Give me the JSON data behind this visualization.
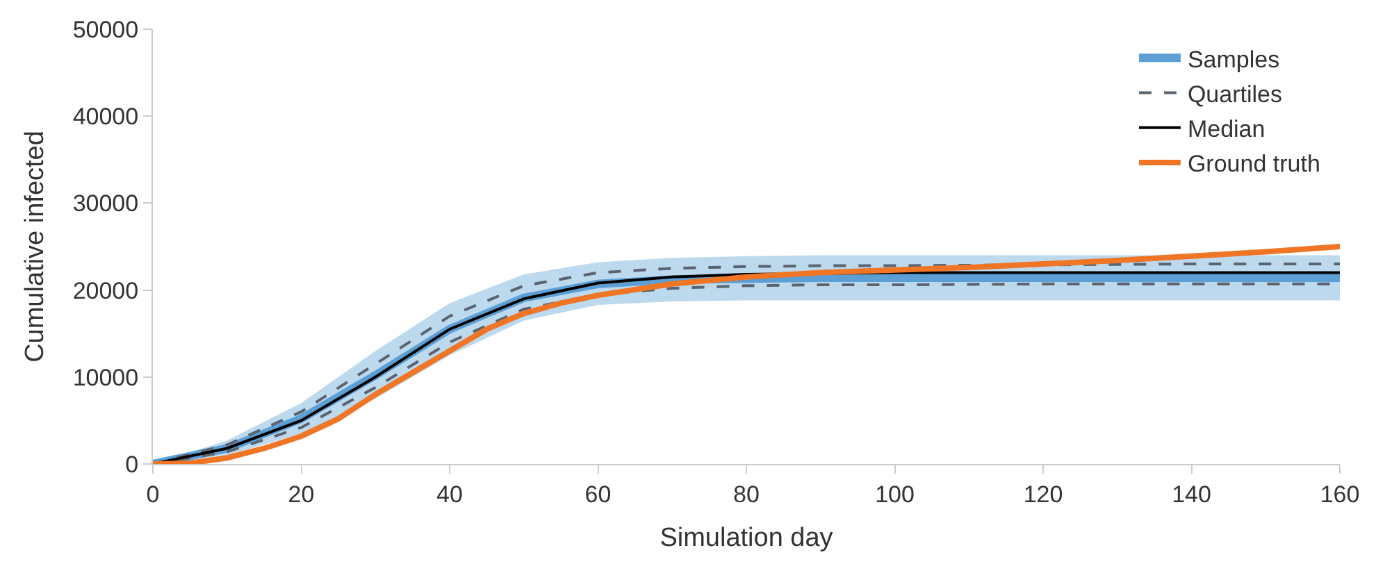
{
  "chart_data": {
    "type": "line",
    "xlabel": "Simulation day",
    "ylabel": "Cumulative infected",
    "x": [
      0,
      10,
      20,
      30,
      40,
      50,
      60,
      70,
      80,
      90,
      100,
      120,
      140,
      160
    ],
    "xlim": [
      0,
      160
    ],
    "xticks": [
      0,
      20,
      40,
      60,
      80,
      100,
      120,
      140,
      160
    ],
    "ylim": [
      0,
      50000
    ],
    "yticks": [
      0,
      10000,
      20000,
      30000,
      40000,
      50000
    ],
    "legend": "top right",
    "marker": "none",
    "series": [
      {
        "name": "Samples",
        "type": "line",
        "color": "#5b9fd4",
        "values": [
          0,
          1800,
          5200,
          10200,
          15500,
          19100,
          20700,
          21200,
          21300,
          21400,
          21400,
          21400,
          21400,
          21400
        ],
        "lower": [
          0,
          1000,
          3500,
          7500,
          12500,
          16500,
          18300,
          18700,
          18800,
          18800,
          18800,
          18800,
          18800,
          18800
        ],
        "upper": [
          0,
          2700,
          7000,
          13000,
          18500,
          21800,
          23200,
          23700,
          23900,
          24000,
          24000,
          24000,
          24000,
          24000
        ]
      },
      {
        "name": "Quartiles",
        "color": "#5a6470",
        "line_style": "dashed",
        "values": [
          0,
          2200,
          6000,
          11500,
          17000,
          20500,
          22000,
          22500,
          22700,
          22800,
          22800,
          22900,
          23000,
          23000
        ]
      },
      {
        "color": "#5a6470",
        "line_style": "dashed",
        "values": [
          0,
          1400,
          4200,
          8800,
          14000,
          17800,
          19500,
          20200,
          20500,
          20600,
          20600,
          20700,
          20700,
          20700
        ]
      },
      {
        "name": "Median",
        "color": "#000000",
        "line_style": "solid",
        "values": [
          0,
          1800,
          5000,
          10000,
          15500,
          19000,
          20800,
          21500,
          21800,
          21900,
          22000,
          22000,
          22000,
          22000
        ]
      },
      {
        "name": "Ground truth",
        "color": "#f07524",
        "line_style": "solid",
        "x": [
          0,
          5,
          10,
          15,
          20,
          25,
          30,
          35,
          40,
          45,
          50,
          55,
          60,
          70,
          80,
          90,
          100,
          110,
          120,
          130,
          140,
          150,
          160
        ],
        "values": [
          0,
          100,
          700,
          1800,
          3200,
          5200,
          8000,
          10500,
          13000,
          15500,
          17300,
          18500,
          19400,
          20700,
          21500,
          22000,
          22300,
          22600,
          23000,
          23400,
          23900,
          24400,
          25000
        ]
      }
    ]
  }
}
